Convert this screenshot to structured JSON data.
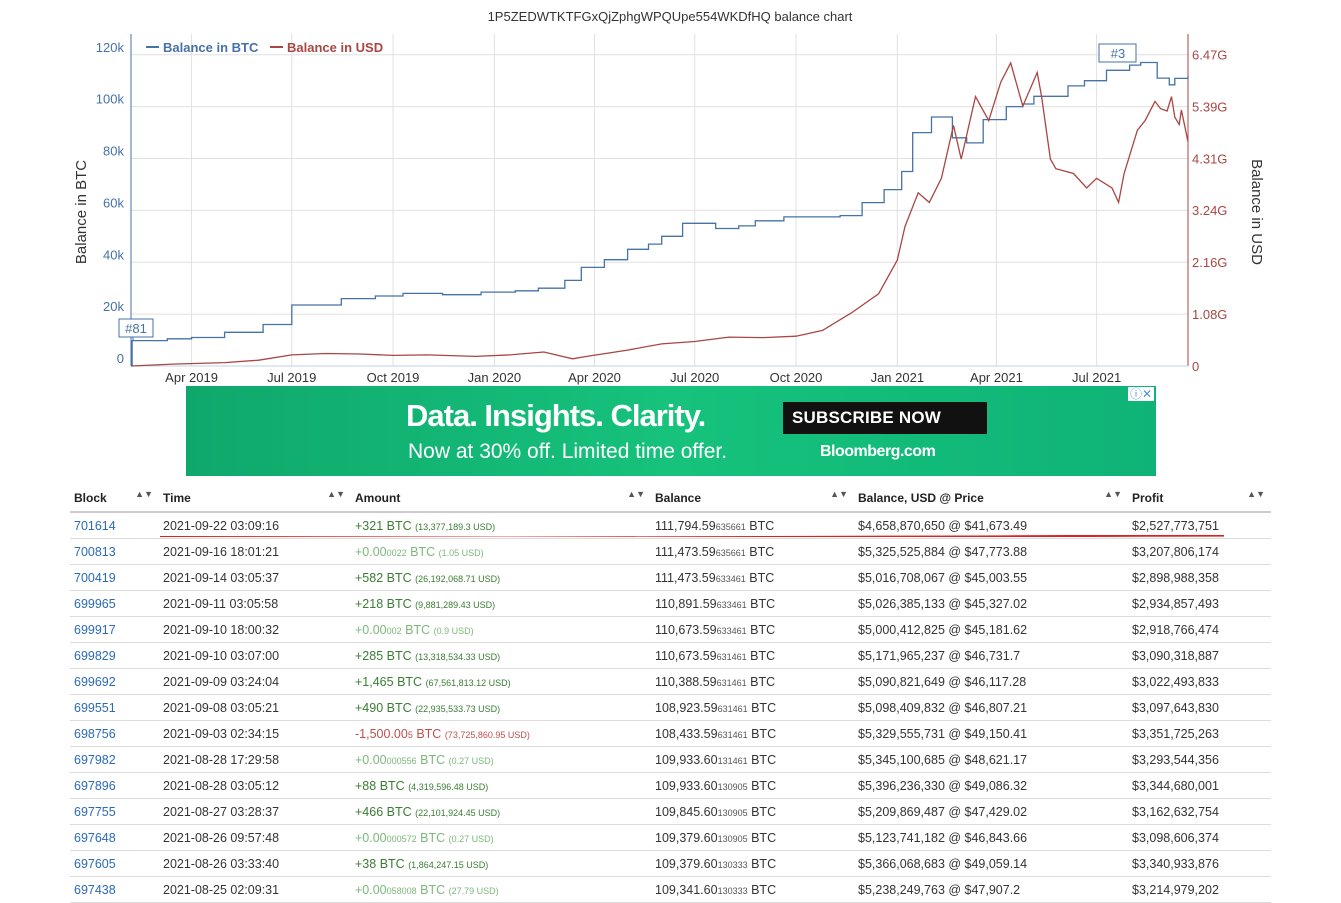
{
  "chart": {
    "title": "1P5ZEDWTKTFGxQjZphgWPQUpe554WKDfHQ balance chart",
    "legend": [
      {
        "name": "Balance in BTC",
        "color": "#4572a7"
      },
      {
        "name": "Balance in USD",
        "color": "#aa4643"
      }
    ],
    "y_left_label": "Balance in BTC",
    "y_right_label": "Balance in USD",
    "y_left_ticks": [
      "0",
      "20k",
      "40k",
      "60k",
      "80k",
      "100k",
      "120k"
    ],
    "y_right_ticks": [
      "0",
      "1.08G",
      "2.16G",
      "3.24G",
      "4.31G",
      "5.39G",
      "6.47G"
    ],
    "x_ticks": [
      "Apr 2019",
      "Jul 2019",
      "Oct 2019",
      "Jan 2020",
      "Apr 2020",
      "Jul 2020",
      "Oct 2020",
      "Jan 2021",
      "Apr 2021",
      "Jul 2021"
    ],
    "flags": [
      {
        "label": "#81"
      },
      {
        "label": "#3"
      }
    ]
  },
  "chart_data": {
    "type": "line",
    "x_range": [
      "2019-02-05",
      "2021-09-22"
    ],
    "ylim_left": [
      0,
      128000
    ],
    "ylim_right": [
      0,
      6900000000
    ],
    "series": [
      {
        "name": "Balance in BTC",
        "axis": "left",
        "color": "#4572a7",
        "points": [
          [
            "2019-02-05",
            0
          ],
          [
            "2019-02-06",
            9800
          ],
          [
            "2019-03-10",
            10500
          ],
          [
            "2019-04-01",
            11000
          ],
          [
            "2019-05-01",
            13000
          ],
          [
            "2019-06-05",
            16000
          ],
          [
            "2019-07-01",
            23500
          ],
          [
            "2019-08-15",
            26000
          ],
          [
            "2019-09-15",
            27000
          ],
          [
            "2019-10-10",
            28000
          ],
          [
            "2019-11-15",
            27500
          ],
          [
            "2019-12-20",
            28500
          ],
          [
            "2020-01-20",
            29000
          ],
          [
            "2020-02-10",
            30000
          ],
          [
            "2020-03-05",
            33000
          ],
          [
            "2020-03-20",
            38000
          ],
          [
            "2020-04-10",
            41000
          ],
          [
            "2020-05-01",
            45000
          ],
          [
            "2020-05-20",
            47000
          ],
          [
            "2020-06-01",
            50000
          ],
          [
            "2020-06-20",
            55000
          ],
          [
            "2020-07-20",
            53000
          ],
          [
            "2020-08-10",
            54000
          ],
          [
            "2020-08-25",
            56000
          ],
          [
            "2020-09-20",
            57500
          ],
          [
            "2020-10-20",
            57500
          ],
          [
            "2020-11-10",
            58000
          ],
          [
            "2020-11-30",
            63000
          ],
          [
            "2020-12-20",
            68000
          ],
          [
            "2021-01-05",
            75000
          ],
          [
            "2021-01-15",
            90000
          ],
          [
            "2021-02-01",
            96000
          ],
          [
            "2021-02-20",
            88000
          ],
          [
            "2021-03-05",
            86000
          ],
          [
            "2021-03-20",
            95000
          ],
          [
            "2021-04-10",
            100000
          ],
          [
            "2021-04-25",
            101000
          ],
          [
            "2021-05-05",
            104000
          ],
          [
            "2021-06-05",
            108000
          ],
          [
            "2021-06-20",
            110000
          ],
          [
            "2021-07-10",
            114000
          ],
          [
            "2021-07-31",
            116000
          ],
          [
            "2021-08-10",
            117000
          ],
          [
            "2021-08-25",
            111000
          ],
          [
            "2021-09-05",
            108400
          ],
          [
            "2021-09-10",
            110900
          ],
          [
            "2021-09-22",
            111794
          ]
        ]
      },
      {
        "name": "Balance in USD",
        "axis": "right",
        "color": "#aa4643",
        "points": [
          [
            "2019-02-05",
            0
          ],
          [
            "2019-03-15",
            40000000
          ],
          [
            "2019-05-01",
            70000000
          ],
          [
            "2019-06-01",
            120000000
          ],
          [
            "2019-07-01",
            230000000
          ],
          [
            "2019-08-01",
            260000000
          ],
          [
            "2019-09-01",
            250000000
          ],
          [
            "2019-10-01",
            220000000
          ],
          [
            "2019-11-01",
            230000000
          ],
          [
            "2019-12-15",
            200000000
          ],
          [
            "2020-01-15",
            230000000
          ],
          [
            "2020-02-15",
            290000000
          ],
          [
            "2020-03-12",
            150000000
          ],
          [
            "2020-03-25",
            200000000
          ],
          [
            "2020-05-01",
            330000000
          ],
          [
            "2020-06-01",
            460000000
          ],
          [
            "2020-07-01",
            510000000
          ],
          [
            "2020-08-01",
            600000000
          ],
          [
            "2020-09-01",
            590000000
          ],
          [
            "2020-10-01",
            620000000
          ],
          [
            "2020-10-25",
            740000000
          ],
          [
            "2020-11-20",
            1100000000
          ],
          [
            "2020-12-15",
            1500000000
          ],
          [
            "2021-01-01",
            2200000000
          ],
          [
            "2021-01-08",
            2900000000
          ],
          [
            "2021-01-20",
            3600000000
          ],
          [
            "2021-01-30",
            3400000000
          ],
          [
            "2021-02-10",
            3900000000
          ],
          [
            "2021-02-21",
            5000000000
          ],
          [
            "2021-02-28",
            4300000000
          ],
          [
            "2021-03-13",
            5600000000
          ],
          [
            "2021-03-25",
            5100000000
          ],
          [
            "2021-04-05",
            5900000000
          ],
          [
            "2021-04-14",
            6300000000
          ],
          [
            "2021-04-25",
            5400000000
          ],
          [
            "2021-05-08",
            6100000000
          ],
          [
            "2021-05-12",
            5600000000
          ],
          [
            "2021-05-20",
            4300000000
          ],
          [
            "2021-05-25",
            4100000000
          ],
          [
            "2021-06-10",
            4000000000
          ],
          [
            "2021-06-22",
            3700000000
          ],
          [
            "2021-07-01",
            3900000000
          ],
          [
            "2021-07-15",
            3700000000
          ],
          [
            "2021-07-21",
            3400000000
          ],
          [
            "2021-07-26",
            4000000000
          ],
          [
            "2021-08-07",
            4900000000
          ],
          [
            "2021-08-14",
            5100000000
          ],
          [
            "2021-08-23",
            5500000000
          ],
          [
            "2021-08-28",
            5350000000
          ],
          [
            "2021-09-03",
            5300000000
          ],
          [
            "2021-09-07",
            5600000000
          ],
          [
            "2021-09-10",
            5170000000
          ],
          [
            "2021-09-14",
            5020000000
          ],
          [
            "2021-09-16",
            5320000000
          ],
          [
            "2021-09-22",
            4660000000
          ]
        ]
      }
    ]
  },
  "ad": {
    "headline": "Data. Insights. Clarity.",
    "subline": "Now at 30% off. Limited time offer.",
    "cta": "SUBSCRIBE NOW",
    "brand": "Bloomberg.com",
    "icons": "ⓘ✕"
  },
  "table": {
    "headers": [
      "Block",
      "Time",
      "Amount",
      "Balance",
      "Balance, USD @ Price",
      "Profit"
    ],
    "rows": [
      {
        "block": "701614",
        "time": "2021-09-22 03:09:16",
        "amt_main": "+321",
        "amt_small": "",
        "amt_usd": "(13,377,189.3 USD)",
        "kind": "pos",
        "bal_main": "111,794.59",
        "bal_small": "635661",
        "usd_price": "$4,658,870,650 @ $41,673.49",
        "profit": "$2,527,773,751"
      },
      {
        "block": "700813",
        "time": "2021-09-16 18:01:21",
        "amt_main": "+0.00",
        "amt_small": "0022",
        "amt_usd": "(1.05 USD)",
        "kind": "zero",
        "bal_main": "111,473.59",
        "bal_small": "635661",
        "usd_price": "$5,325,525,884 @ $47,773.88",
        "profit": "$3,207,806,174"
      },
      {
        "block": "700419",
        "time": "2021-09-14 03:05:37",
        "amt_main": "+582",
        "amt_small": "",
        "amt_usd": "(26,192,068.71 USD)",
        "kind": "pos",
        "bal_main": "111,473.59",
        "bal_small": "633461",
        "usd_price": "$5,016,708,067 @ $45,003.55",
        "profit": "$2,898,988,358"
      },
      {
        "block": "699965",
        "time": "2021-09-11 03:05:58",
        "amt_main": "+218",
        "amt_small": "",
        "amt_usd": "(9,881,289.43 USD)",
        "kind": "pos",
        "bal_main": "110,891.59",
        "bal_small": "633461",
        "usd_price": "$5,026,385,133 @ $45,327.02",
        "profit": "$2,934,857,493"
      },
      {
        "block": "699917",
        "time": "2021-09-10 18:00:32",
        "amt_main": "+0.00",
        "amt_small": "002",
        "amt_usd": "(0.9 USD)",
        "kind": "zero",
        "bal_main": "110,673.59",
        "bal_small": "633461",
        "usd_price": "$5,000,412,825 @ $45,181.62",
        "profit": "$2,918,766,474"
      },
      {
        "block": "699829",
        "time": "2021-09-10 03:07:00",
        "amt_main": "+285",
        "amt_small": "",
        "amt_usd": "(13,318,534.33 USD)",
        "kind": "pos",
        "bal_main": "110,673.59",
        "bal_small": "631461",
        "usd_price": "$5,171,965,237 @ $46,731.7",
        "profit": "$3,090,318,887"
      },
      {
        "block": "699692",
        "time": "2021-09-09 03:24:04",
        "amt_main": "+1,465",
        "amt_small": "",
        "amt_usd": "(67,561,813.12 USD)",
        "kind": "pos",
        "bal_main": "110,388.59",
        "bal_small": "631461",
        "usd_price": "$5,090,821,649 @ $46,117.28",
        "profit": "$3,022,493,833"
      },
      {
        "block": "699551",
        "time": "2021-09-08 03:05:21",
        "amt_main": "+490",
        "amt_small": "",
        "amt_usd": "(22,935,533.73 USD)",
        "kind": "pos",
        "bal_main": "108,923.59",
        "bal_small": "631461",
        "usd_price": "$5,098,409,832 @ $46,807.21",
        "profit": "$3,097,643,830"
      },
      {
        "block": "698756",
        "time": "2021-09-03 02:34:15",
        "amt_main": "-1,500.00",
        "amt_small": "5",
        "amt_usd": "(73,725,860.95 USD)",
        "kind": "neg",
        "bal_main": "108,433.59",
        "bal_small": "631461",
        "usd_price": "$5,329,555,731 @ $49,150.41",
        "profit": "$3,351,725,263"
      },
      {
        "block": "697982",
        "time": "2021-08-28 17:29:58",
        "amt_main": "+0.00",
        "amt_small": "000556",
        "amt_usd": "(0.27 USD)",
        "kind": "zero",
        "bal_main": "109,933.60",
        "bal_small": "131461",
        "usd_price": "$5,345,100,685 @ $48,621.17",
        "profit": "$3,293,544,356"
      },
      {
        "block": "697896",
        "time": "2021-08-28 03:05:12",
        "amt_main": "+88",
        "amt_small": "",
        "amt_usd": "(4,319,596.48 USD)",
        "kind": "pos",
        "bal_main": "109,933.60",
        "bal_small": "130905",
        "usd_price": "$5,396,236,330 @ $49,086.32",
        "profit": "$3,344,680,001"
      },
      {
        "block": "697755",
        "time": "2021-08-27 03:28:37",
        "amt_main": "+466",
        "amt_small": "",
        "amt_usd": "(22,101,924.45 USD)",
        "kind": "pos",
        "bal_main": "109,845.60",
        "bal_small": "130905",
        "usd_price": "$5,209,869,487 @ $47,429.02",
        "profit": "$3,162,632,754"
      },
      {
        "block": "697648",
        "time": "2021-08-26 09:57:48",
        "amt_main": "+0.00",
        "amt_small": "000572",
        "amt_usd": "(0.27 USD)",
        "kind": "zero",
        "bal_main": "109,379.60",
        "bal_small": "130905",
        "usd_price": "$5,123,741,182 @ $46,843.66",
        "profit": "$3,098,606,374"
      },
      {
        "block": "697605",
        "time": "2021-08-26 03:33:40",
        "amt_main": "+38",
        "amt_small": "",
        "amt_usd": "(1,864,247.15 USD)",
        "kind": "pos",
        "bal_main": "109,379.60",
        "bal_small": "130333",
        "usd_price": "$5,366,068,683 @ $49,059.14",
        "profit": "$3,340,933,876"
      },
      {
        "block": "697438",
        "time": "2021-08-25 02:09:31",
        "amt_main": "+0.00",
        "amt_small": "058008",
        "amt_usd": "(27.79 USD)",
        "kind": "zero",
        "bal_main": "109,341.60",
        "bal_small": "130333",
        "usd_price": "$5,238,249,763 @ $47,907.2",
        "profit": "$3,214,979,202"
      }
    ],
    "unit": "BTC",
    "sort_icon": "▲▼"
  },
  "annotation": {
    "color": "#e02020"
  }
}
